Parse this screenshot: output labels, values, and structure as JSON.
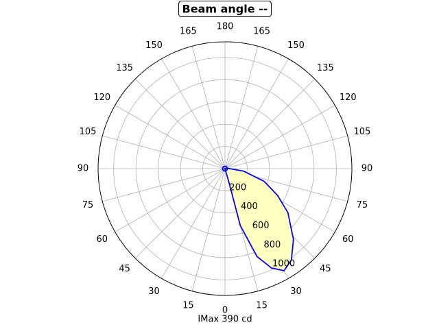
{
  "chart_data": {
    "type": "polar",
    "title": "Beam angle --",
    "xlabel": "IMax 390 cd",
    "rlim": [
      0,
      1140
    ],
    "rticks": [
      200,
      400,
      600,
      800,
      1000
    ],
    "thetaticks": [
      0,
      15,
      30,
      45,
      60,
      75,
      90,
      105,
      120,
      135,
      150,
      165,
      180,
      {
        "value": 195,
        "label": "165"
      },
      {
        "value": 210,
        "label": "150"
      },
      {
        "value": 225,
        "label": "135"
      },
      {
        "value": 240,
        "label": "120"
      },
      {
        "value": 255,
        "label": "105"
      },
      {
        "value": 270,
        "label": "90"
      },
      {
        "value": 285,
        "label": "75"
      },
      {
        "value": 300,
        "label": "60"
      },
      {
        "value": 315,
        "label": "45"
      },
      {
        "value": 330,
        "label": "30"
      },
      {
        "value": 345,
        "label": "15"
      }
    ],
    "grid": true,
    "series": [
      {
        "color": "#0000ff",
        "fill": "#ffffc0",
        "theta": [
          0,
          16,
          15,
          20,
          25,
          30,
          36,
          44,
          55,
          63,
          72,
          82,
          100
        ],
        "values": [
          0,
          150,
          530,
          840,
          985,
          1060,
          1015,
          885,
          690,
          530,
          370,
          170,
          20
        ]
      }
    ]
  }
}
